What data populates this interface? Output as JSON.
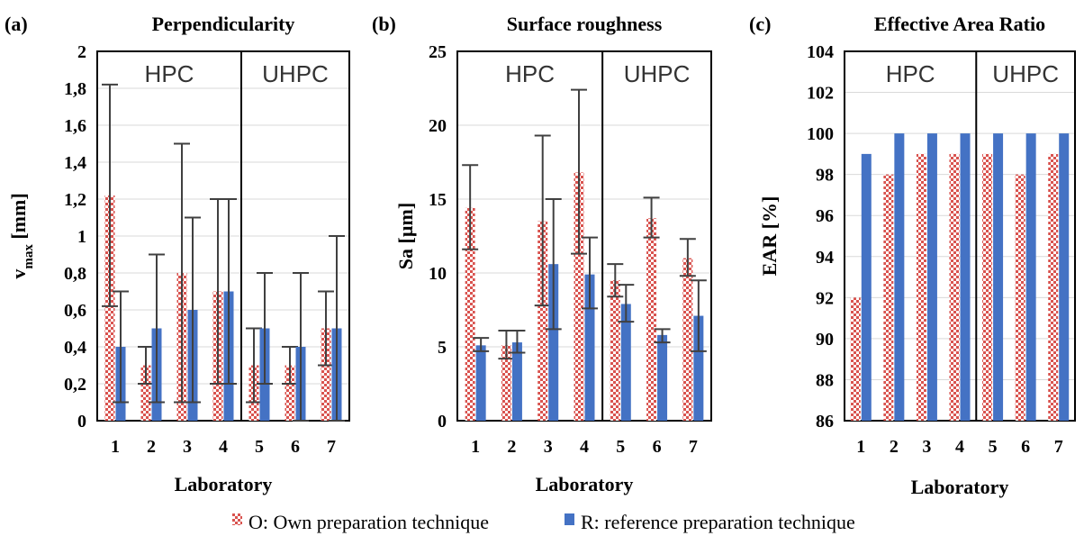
{
  "colors": {
    "own": "#d9534f",
    "reference": "#4472c4",
    "errorbar": "#404040",
    "grid": "#d9d9d9"
  },
  "legend": {
    "own_label": "O: Own preparation technique",
    "reference_label": "R: reference preparation technique"
  },
  "chart_data": [
    {
      "type": "bar",
      "panel_label": "(a)",
      "title": "Perpendicularity",
      "xlabel": "Laboratory",
      "ylabel": "v",
      "ylabel_subscript": "max",
      "ylabel_unit": "[mm]",
      "categories": [
        "1",
        "2",
        "3",
        "4",
        "5",
        "6",
        "7"
      ],
      "ylim": [
        0,
        2
      ],
      "yticks": [
        "0",
        "0,2",
        "0,4",
        "0,6",
        "0,8",
        "1",
        "1,2",
        "1,4",
        "1,6",
        "1,8",
        "2"
      ],
      "ytick_values": [
        0,
        0.2,
        0.4,
        0.6,
        0.8,
        1,
        1.2,
        1.4,
        1.6,
        1.8,
        2
      ],
      "groups": [
        {
          "label": "HPC",
          "categories": [
            "1",
            "2",
            "3",
            "4"
          ]
        },
        {
          "label": "UHPC",
          "categories": [
            "5",
            "6",
            "7"
          ]
        }
      ],
      "grid": true,
      "series": [
        {
          "name": "O: Own preparation technique",
          "values": [
            1.22,
            0.3,
            0.8,
            0.7,
            0.3,
            0.3,
            0.5
          ],
          "err_low": [
            0.62,
            0.2,
            0.1,
            0.2,
            0.1,
            0.2,
            0.3
          ],
          "err_high": [
            1.82,
            0.4,
            1.5,
            1.2,
            0.5,
            0.4,
            0.7
          ]
        },
        {
          "name": "R: reference preparation technique",
          "values": [
            0.4,
            0.5,
            0.6,
            0.7,
            0.5,
            0.4,
            0.5
          ],
          "err_low": [
            0.1,
            0.1,
            0.1,
            0.2,
            0.2,
            0.0,
            0.0
          ],
          "err_high": [
            0.7,
            0.9,
            1.1,
            1.2,
            0.8,
            0.8,
            1.0
          ]
        }
      ]
    },
    {
      "type": "bar",
      "panel_label": "(b)",
      "title": "Surface roughness",
      "xlabel": "Laboratory",
      "ylabel": "Sa [µm]",
      "categories": [
        "1",
        "2",
        "3",
        "4",
        "5",
        "6",
        "7"
      ],
      "ylim": [
        0,
        25
      ],
      "yticks": [
        "0",
        "5",
        "10",
        "15",
        "20",
        "25"
      ],
      "ytick_values": [
        0,
        5,
        10,
        15,
        20,
        25
      ],
      "groups": [
        {
          "label": "HPC",
          "categories": [
            "1",
            "2",
            "3",
            "4"
          ]
        },
        {
          "label": "UHPC",
          "categories": [
            "5",
            "6",
            "7"
          ]
        }
      ],
      "grid": true,
      "series": [
        {
          "name": "O: Own preparation technique",
          "values": [
            14.4,
            5.1,
            13.5,
            16.8,
            9.5,
            13.7,
            11.0
          ],
          "err_low": [
            11.6,
            4.2,
            7.8,
            11.3,
            8.4,
            12.4,
            9.8
          ],
          "err_high": [
            17.3,
            6.1,
            19.3,
            22.4,
            10.6,
            15.1,
            12.3
          ]
        },
        {
          "name": "R: reference preparation technique",
          "values": [
            5.1,
            5.3,
            10.6,
            9.9,
            7.9,
            5.8,
            7.1
          ],
          "err_low": [
            4.7,
            4.6,
            6.2,
            7.6,
            6.7,
            5.3,
            4.7
          ],
          "err_high": [
            5.6,
            6.1,
            15.0,
            12.4,
            9.2,
            6.2,
            9.5
          ]
        }
      ]
    },
    {
      "type": "bar",
      "panel_label": "(c)",
      "title": "Effective Area Ratio",
      "xlabel": "Laboratory",
      "ylabel": "EAR [%]",
      "categories": [
        "1",
        "2",
        "3",
        "4",
        "5",
        "6",
        "7"
      ],
      "ylim": [
        86,
        104
      ],
      "yticks": [
        "86",
        "88",
        "90",
        "92",
        "94",
        "96",
        "98",
        "100",
        "102",
        "104"
      ],
      "ytick_values": [
        86,
        88,
        90,
        92,
        94,
        96,
        98,
        100,
        102,
        104
      ],
      "groups": [
        {
          "label": "HPC",
          "categories": [
            "1",
            "2",
            "3",
            "4"
          ]
        },
        {
          "label": "UHPC",
          "categories": [
            "5",
            "6",
            "7"
          ]
        }
      ],
      "grid": true,
      "series": [
        {
          "name": "O: Own preparation technique",
          "values": [
            92,
            98,
            99,
            99,
            99,
            98,
            99
          ]
        },
        {
          "name": "R: reference preparation technique",
          "values": [
            99,
            100,
            100,
            100,
            100,
            100,
            100
          ]
        }
      ]
    }
  ]
}
